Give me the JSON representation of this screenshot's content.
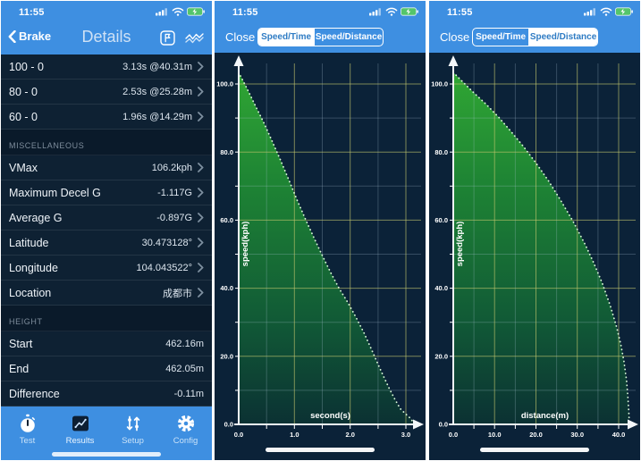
{
  "colors": {
    "header_blue": "#3E8FE1",
    "navy_bg": "#0E2133",
    "chart_bg": "#0B2238",
    "grid_major": "rgba(196,198,110,0.62)",
    "grid_minor": "rgba(176,200,222,0.26)",
    "axis": "#F3F7FA",
    "curve_dots": "#D8F6D8",
    "green_top": "#33AC33",
    "green_mid": "#1E8434",
    "green_low": "#115A36",
    "green_bottom": "#0B3133",
    "seg_active_text": "#2F7CC4",
    "battery_green": "#54C56B"
  },
  "left_panel": {
    "status_time": "11:55",
    "nav": {
      "back_label": "Brake",
      "title": "Details",
      "icons": [
        "flag-icon",
        "waveform-icon"
      ]
    },
    "list": [
      {
        "type": "row",
        "label": "100 - 0",
        "value": "3.13s @40.31m",
        "chevron": true
      },
      {
        "type": "row",
        "label": "80 - 0",
        "value": "2.53s @25.28m",
        "chevron": true
      },
      {
        "type": "row",
        "label": "60 - 0",
        "value": "1.96s @14.29m",
        "chevron": true
      },
      {
        "type": "section",
        "label": "MISCELLANEOUS"
      },
      {
        "type": "row",
        "label": "VMax",
        "value": "106.2kph",
        "chevron": true
      },
      {
        "type": "row",
        "label": "Maximum Decel G",
        "value": "-1.117G",
        "chevron": true
      },
      {
        "type": "row",
        "label": "Average G",
        "value": "-0.897G",
        "chevron": true
      },
      {
        "type": "row",
        "label": "Latitude",
        "value": "30.473128°",
        "chevron": true
      },
      {
        "type": "row",
        "label": "Longitude",
        "value": "104.043522°",
        "chevron": true
      },
      {
        "type": "row",
        "label": "Location",
        "value": "成都市",
        "chevron": true
      },
      {
        "type": "section",
        "label": "HEIGHT"
      },
      {
        "type": "row",
        "label": "Start",
        "value": "462.16m",
        "chevron": false
      },
      {
        "type": "row",
        "label": "End",
        "value": "462.05m",
        "chevron": false
      },
      {
        "type": "row",
        "label": "Difference",
        "value": "-0.11m",
        "chevron": false
      }
    ],
    "tab_bar": [
      {
        "label": "Test",
        "icon": "stopwatch-icon",
        "active": false
      },
      {
        "label": "Results",
        "icon": "results-chart-icon",
        "active": true
      },
      {
        "label": "Setup",
        "icon": "sliders-icon",
        "active": false
      },
      {
        "label": "Config",
        "icon": "gear-icon",
        "active": false
      }
    ]
  },
  "chart_panels": [
    {
      "status_time": "11:55",
      "close_label": "Close",
      "segments": [
        {
          "label": "Speed/Time",
          "active": true
        },
        {
          "label": "Speed/Distance",
          "active": false
        }
      ],
      "chart_index": 0
    },
    {
      "status_time": "11:55",
      "close_label": "Close",
      "segments": [
        {
          "label": "Speed/Time",
          "active": false
        },
        {
          "label": "Speed/Distance",
          "active": true
        }
      ],
      "chart_index": 1
    }
  ],
  "chart_data": [
    {
      "type": "area",
      "title": "Brake speed vs time",
      "xlabel": "second(s)",
      "ylabel": "speed(kph)",
      "xlim": [
        0,
        3.16
      ],
      "ylim": [
        0,
        108
      ],
      "grid": true,
      "x_major": [
        1,
        2,
        3
      ],
      "x_minor": [
        0.5,
        1.5,
        2.5
      ],
      "x_tick_labels": [
        [
          0,
          "0.0"
        ],
        [
          1,
          "1.0"
        ],
        [
          2,
          "2.0"
        ],
        [
          3,
          "3.0"
        ]
      ],
      "y_major": [
        20,
        40,
        60,
        80,
        100
      ],
      "y_minor": [
        10,
        30,
        50,
        70,
        90
      ],
      "y_tick_labels": [
        [
          0,
          "0.0"
        ],
        [
          20,
          "20.0"
        ],
        [
          40,
          "40.0"
        ],
        [
          60,
          "60.0"
        ],
        [
          80,
          "80.0"
        ],
        [
          100,
          "100.0"
        ]
      ],
      "points": [
        [
          0,
          103.4
        ],
        [
          0.15,
          98.6
        ],
        [
          0.3,
          93.6
        ],
        [
          0.45,
          88.6
        ],
        [
          0.6,
          83.2
        ],
        [
          0.75,
          77.6
        ],
        [
          0.9,
          71.8
        ],
        [
          1.05,
          65.8
        ],
        [
          1.2,
          60.2
        ],
        [
          1.35,
          54.8
        ],
        [
          1.5,
          49.6
        ],
        [
          1.65,
          44.6
        ],
        [
          1.8,
          40.0
        ],
        [
          1.95,
          36.0
        ],
        [
          2.1,
          31.6
        ],
        [
          2.25,
          26.8
        ],
        [
          2.4,
          21.4
        ],
        [
          2.55,
          15.8
        ],
        [
          2.7,
          10.6
        ],
        [
          2.8,
          7.4
        ],
        [
          2.9,
          4.6
        ],
        [
          3.0,
          3.0
        ],
        [
          3.08,
          1.8
        ],
        [
          3.16,
          0
        ]
      ]
    },
    {
      "type": "area",
      "title": "Brake speed vs distance",
      "xlabel": "distance(m)",
      "ylabel": "speed(kph)",
      "xlim": [
        0,
        42.6
      ],
      "ylim": [
        0,
        108
      ],
      "grid": true,
      "x_major": [
        10,
        20,
        30,
        40
      ],
      "x_minor": [
        5,
        15,
        25,
        35
      ],
      "x_tick_labels": [
        [
          0,
          "0.0"
        ],
        [
          10,
          "10.0"
        ],
        [
          20,
          "20.0"
        ],
        [
          30,
          "30.0"
        ],
        [
          40,
          "40.0"
        ]
      ],
      "y_major": [
        20,
        40,
        60,
        80,
        100
      ],
      "y_minor": [
        10,
        30,
        50,
        70,
        90
      ],
      "y_tick_labels": [
        [
          0,
          "0.0"
        ],
        [
          20,
          "20.0"
        ],
        [
          40,
          "40.0"
        ],
        [
          60,
          "60.0"
        ],
        [
          80,
          "80.0"
        ],
        [
          100,
          "100.0"
        ]
      ],
      "points": [
        [
          0,
          103.4
        ],
        [
          2,
          101.0
        ],
        [
          5,
          97.4
        ],
        [
          8,
          94.0
        ],
        [
          11,
          90.2
        ],
        [
          14,
          86.0
        ],
        [
          17,
          81.6
        ],
        [
          20,
          76.8
        ],
        [
          23,
          71.6
        ],
        [
          26,
          65.8
        ],
        [
          29,
          59.6
        ],
        [
          32,
          52.6
        ],
        [
          34,
          47.4
        ],
        [
          36,
          41.6
        ],
        [
          38,
          34.8
        ],
        [
          39.5,
          28.6
        ],
        [
          40.5,
          23.6
        ],
        [
          41.3,
          18.4
        ],
        [
          41.9,
          13.0
        ],
        [
          42.2,
          8.5
        ],
        [
          42.45,
          4.0
        ],
        [
          42.6,
          0
        ]
      ]
    }
  ]
}
